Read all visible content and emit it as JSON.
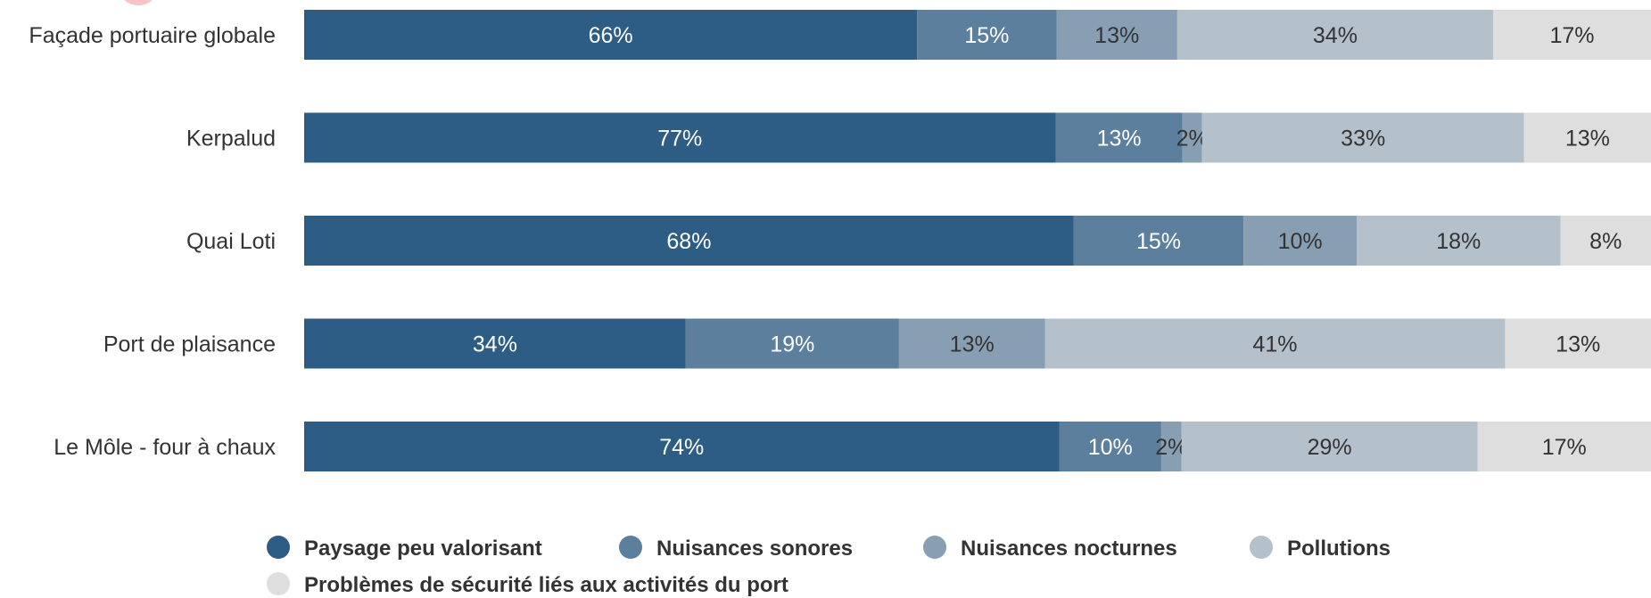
{
  "chart_data": {
    "type": "bar",
    "orientation": "horizontal",
    "stacked": true,
    "categories": [
      "Façade portuaire globale",
      "Kerpalud",
      "Quai Loti",
      "Port de plaisance",
      "Le Môle - four à chaux"
    ],
    "series": [
      {
        "name": "Paysage peu valorisant",
        "color": "#2d5d84",
        "label_color": "#ffffff",
        "values": [
          66,
          77,
          68,
          34,
          74
        ]
      },
      {
        "name": "Nuisances sonores",
        "color": "#5b7f9c",
        "label_color": "#ffffff",
        "values": [
          15,
          13,
          15,
          19,
          10
        ]
      },
      {
        "name": "Nuisances nocturnes",
        "color": "#879eb3",
        "label_color": "#333333",
        "values": [
          13,
          2,
          10,
          13,
          2
        ]
      },
      {
        "name": "Pollutions",
        "color": "#b4c0ca",
        "label_color": "#333333",
        "values": [
          34,
          33,
          18,
          41,
          29
        ]
      },
      {
        "name": "Problèmes de sécurité liés aux activités du port",
        "color": "#dedede",
        "label_color": "#333333",
        "values": [
          17,
          13,
          8,
          13,
          17
        ]
      }
    ],
    "value_suffix": "%",
    "legend_position": "bottom",
    "grid": false
  }
}
